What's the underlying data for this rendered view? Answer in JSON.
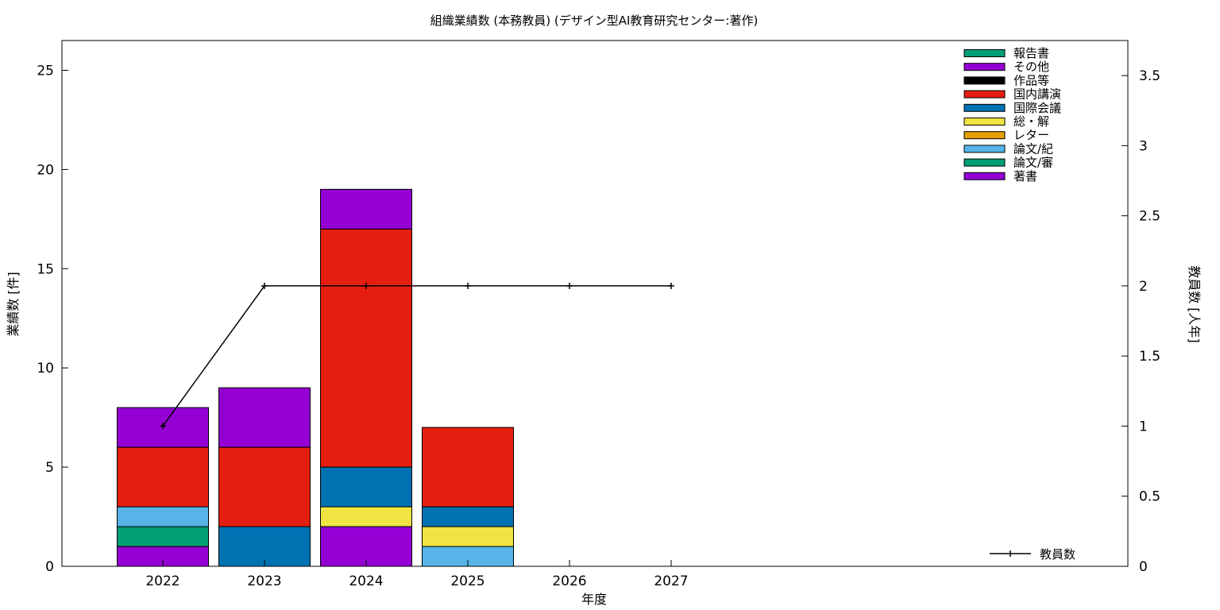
{
  "chart_data": {
    "type": "bar",
    "stacked": true,
    "title": "組織業績数 (本務教員) (デザイン型AI教育研究センター:著作)",
    "xlabel": "年度",
    "ylabel": "業績数 [件]",
    "y2label": "教員数 [人年]",
    "categories": [
      "2022",
      "2023",
      "2024",
      "2025",
      "2026",
      "2027"
    ],
    "ylim": [
      0,
      26.5
    ],
    "yticks": [
      0,
      5,
      10,
      15,
      20,
      25
    ],
    "y2lim": [
      0,
      3.75
    ],
    "y2ticks": [
      0,
      0.5,
      1,
      1.5,
      2,
      2.5,
      3,
      3.5
    ],
    "y2tick_labels": [
      "0",
      "0.5",
      "1",
      "1.5",
      "2",
      "2.5",
      "3",
      "3.5"
    ],
    "grid": false,
    "legend_position": "top-right",
    "line_legend_position": "bottom-right",
    "series": [
      {
        "name": "著書",
        "color": "#9400d3",
        "values": [
          1,
          0,
          2,
          0,
          0,
          0
        ]
      },
      {
        "name": "論文/審",
        "color": "#009e73",
        "values": [
          1,
          0,
          0,
          0,
          0,
          0
        ]
      },
      {
        "name": "論文/紀",
        "color": "#56b4e9",
        "values": [
          1,
          0,
          0,
          1,
          0,
          0
        ]
      },
      {
        "name": "レター",
        "color": "#e69f00",
        "values": [
          0,
          0,
          0,
          0,
          0,
          0
        ]
      },
      {
        "name": "総・解",
        "color": "#f0e442",
        "values": [
          0,
          0,
          1,
          1,
          0,
          0
        ]
      },
      {
        "name": "国際会議",
        "color": "#0072b2",
        "values": [
          0,
          2,
          2,
          1,
          0,
          0
        ]
      },
      {
        "name": "国内講演",
        "color": "#e51e10",
        "values": [
          3,
          4,
          12,
          4,
          0,
          0
        ]
      },
      {
        "name": "作品等",
        "color": "#000000",
        "values": [
          0,
          0,
          0,
          0,
          0,
          0
        ]
      },
      {
        "name": "その他",
        "color": "#9400d3",
        "values": [
          2,
          3,
          2,
          0,
          0,
          0
        ]
      },
      {
        "name": "報告書",
        "color": "#009e73",
        "values": [
          0,
          0,
          0,
          0,
          0,
          0
        ]
      }
    ],
    "line_series": {
      "name": "教員数",
      "color": "#000000",
      "axis": "y2",
      "values": [
        1,
        2,
        2,
        2,
        2,
        2
      ]
    }
  }
}
